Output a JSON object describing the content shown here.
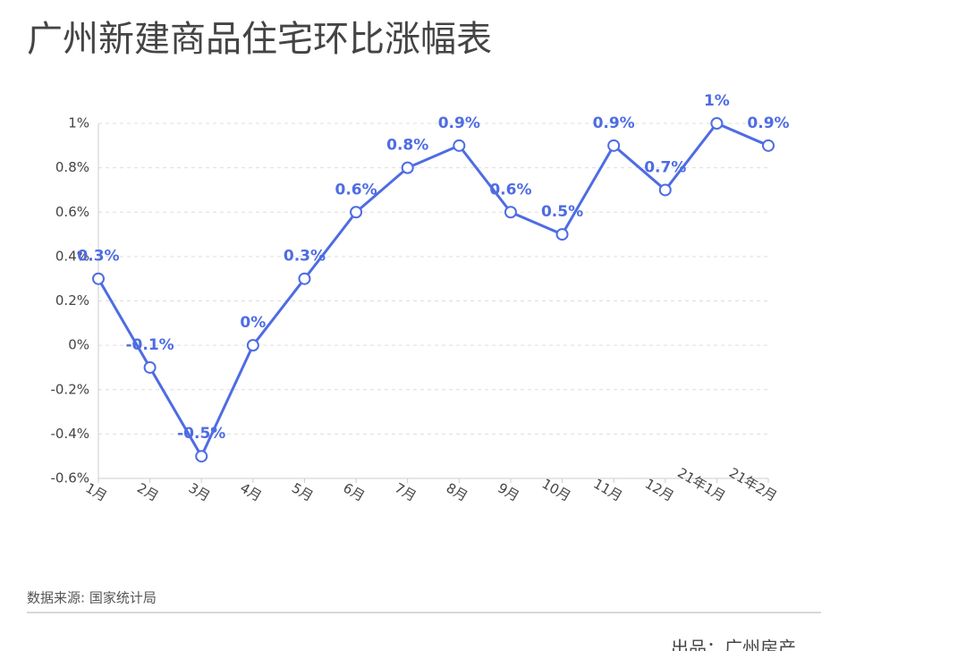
{
  "chart_data": {
    "type": "line",
    "title": "广州新建商品住宅环比涨幅表",
    "source": "数据来源: 国家统计局",
    "credit": "出品：广州房产",
    "categories": [
      "1月",
      "2月",
      "3月",
      "4月",
      "5月",
      "6月",
      "7月",
      "8月",
      "9月",
      "10月",
      "11月",
      "12月",
      "21年1月",
      "21年2月"
    ],
    "values": [
      0.3,
      -0.1,
      -0.5,
      0,
      0.3,
      0.6,
      0.8,
      0.9,
      0.6,
      0.5,
      0.9,
      0.7,
      1,
      0.9
    ],
    "value_labels": [
      "0.3%",
      "-0.1%",
      "-0.5%",
      "0%",
      "0.3%",
      "0.6%",
      "0.8%",
      "0.9%",
      "0.6%",
      "0.5%",
      "0.9%",
      "0.7%",
      "1%",
      "0.9%"
    ],
    "color": "#4e6ce3",
    "ylim": [
      -0.6,
      1
    ],
    "yticks": [
      {
        "value": -0.6,
        "label": "-0.6%"
      },
      {
        "value": -0.4,
        "label": "-0.4%"
      },
      {
        "value": -0.2,
        "label": "-0.2%"
      },
      {
        "value": 0,
        "label": "0%"
      },
      {
        "value": 0.2,
        "label": "0.2%"
      },
      {
        "value": 0.4,
        "label": "0.4%"
      },
      {
        "value": 0.6,
        "label": "0.6%"
      },
      {
        "value": 0.8,
        "label": "0.8%"
      },
      {
        "value": 1,
        "label": "1%"
      }
    ],
    "grid": true
  }
}
